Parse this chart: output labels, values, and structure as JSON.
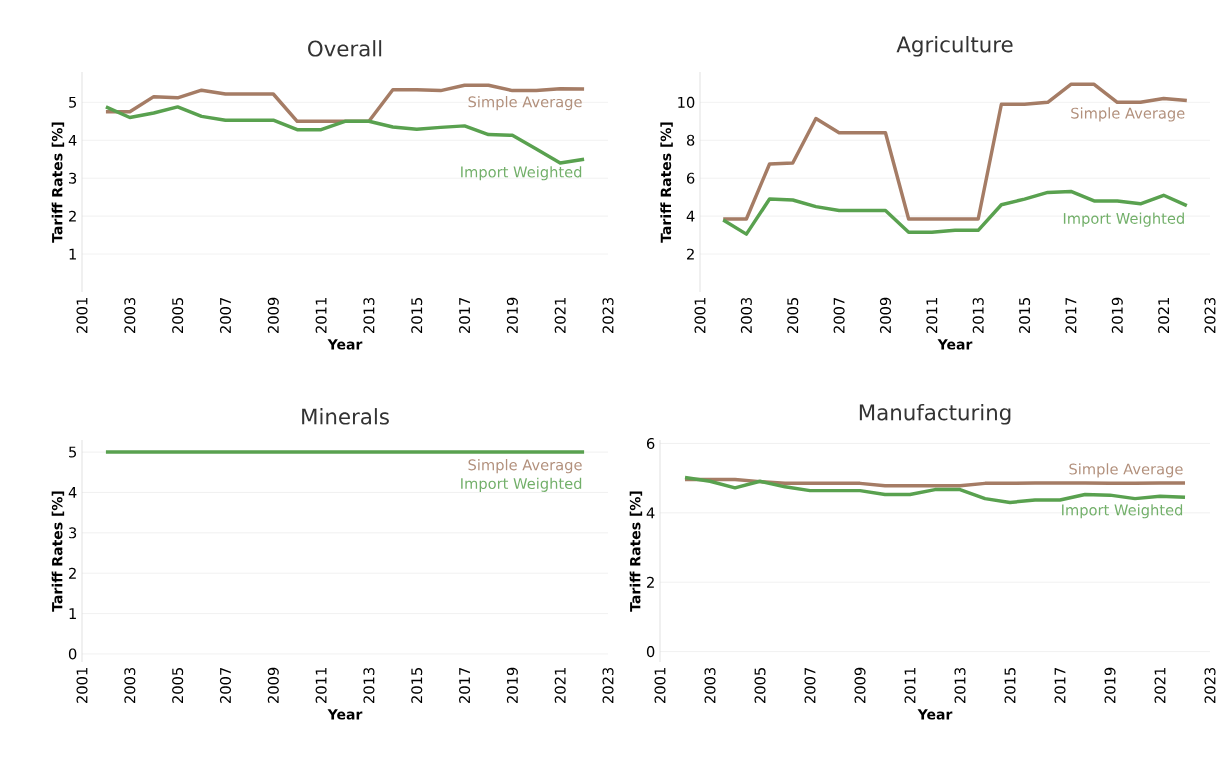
{
  "chart_data": [
    {
      "type": "line",
      "title": "Overall",
      "xlabel": "Year",
      "ylabel": "Tariff Rates [%]",
      "grid": "y",
      "x": [
        2002,
        2003,
        2004,
        2005,
        2006,
        2007,
        2008,
        2009,
        2010,
        2011,
        2012,
        2013,
        2014,
        2015,
        2016,
        2017,
        2018,
        2019,
        2020,
        2021,
        2022
      ],
      "xlim": [
        2001,
        2023
      ],
      "xticks": [
        2001,
        2003,
        2005,
        2007,
        2009,
        2011,
        2013,
        2015,
        2017,
        2019,
        2021,
        2023
      ],
      "ylim": [
        0,
        5.8
      ],
      "yticks": [
        1,
        2,
        3,
        4,
        5
      ],
      "series": [
        {
          "name": "Simple Average",
          "color": "#a57c65",
          "values": [
            4.75,
            4.75,
            5.15,
            5.12,
            5.32,
            5.22,
            5.22,
            5.22,
            4.5,
            4.5,
            4.5,
            4.5,
            5.33,
            5.33,
            5.31,
            5.45,
            5.45,
            5.31,
            5.31,
            5.36,
            5.35
          ]
        },
        {
          "name": "Import Weighted",
          "color": "#59a14f",
          "values": [
            4.88,
            4.6,
            4.72,
            4.88,
            4.63,
            4.53,
            4.53,
            4.53,
            4.28,
            4.28,
            4.5,
            4.5,
            4.35,
            4.29,
            4.34,
            4.38,
            4.15,
            4.13,
            3.77,
            3.4,
            3.5
          ]
        }
      ]
    },
    {
      "type": "line",
      "title": "Agriculture",
      "xlabel": "Year",
      "ylabel": "Tariff Rates [%]",
      "grid": "y",
      "x": [
        2002,
        2003,
        2004,
        2005,
        2006,
        2007,
        2008,
        2009,
        2010,
        2011,
        2012,
        2013,
        2014,
        2015,
        2016,
        2017,
        2018,
        2019,
        2020,
        2021,
        2022
      ],
      "xlim": [
        2001,
        2023
      ],
      "xticks": [
        2001,
        2003,
        2005,
        2007,
        2009,
        2011,
        2013,
        2015,
        2017,
        2019,
        2021,
        2023
      ],
      "ylim": [
        0,
        11.6
      ],
      "yticks": [
        2,
        4,
        6,
        8,
        10
      ],
      "series": [
        {
          "name": "Simple Average",
          "color": "#a57c65",
          "values": [
            3.85,
            3.85,
            6.75,
            6.8,
            9.15,
            8.4,
            8.4,
            8.4,
            3.85,
            3.85,
            3.85,
            3.85,
            9.9,
            9.9,
            10.0,
            10.95,
            10.95,
            10.0,
            10.0,
            10.2,
            10.1
          ]
        },
        {
          "name": "Import Weighted",
          "color": "#59a14f",
          "values": [
            3.8,
            3.05,
            4.9,
            4.85,
            4.5,
            4.3,
            4.3,
            4.3,
            3.15,
            3.15,
            3.25,
            3.25,
            4.6,
            4.9,
            5.25,
            5.3,
            4.8,
            4.8,
            4.65,
            5.1,
            4.55
          ]
        }
      ]
    },
    {
      "type": "line",
      "title": "Minerals",
      "xlabel": "Year",
      "ylabel": "Tariff Rates [%]",
      "grid": "y",
      "x": [
        2002,
        2003,
        2004,
        2005,
        2006,
        2007,
        2008,
        2009,
        2010,
        2011,
        2012,
        2013,
        2014,
        2015,
        2016,
        2017,
        2018,
        2019,
        2020,
        2021,
        2022
      ],
      "xlim": [
        2001,
        2023
      ],
      "xticks": [
        2001,
        2003,
        2005,
        2007,
        2009,
        2011,
        2013,
        2015,
        2017,
        2019,
        2021,
        2023
      ],
      "ylim": [
        -0.2,
        5.3
      ],
      "yticks": [
        0,
        1,
        2,
        3,
        4,
        5
      ],
      "series": [
        {
          "name": "Simple Average",
          "color": "#a57c65",
          "values": [
            null,
            null,
            null,
            null,
            null,
            null,
            null,
            null,
            null,
            null,
            null,
            null,
            null,
            null,
            null,
            null,
            null,
            null,
            null,
            null,
            null
          ]
        },
        {
          "name": "Import Weighted",
          "color": "#59a14f",
          "values": [
            5,
            5,
            5,
            5,
            5,
            5,
            5,
            5,
            5,
            5,
            5,
            5,
            5,
            5,
            5,
            5,
            5,
            5,
            5,
            5,
            5
          ]
        }
      ]
    },
    {
      "type": "line",
      "title": "Manufacturing",
      "xlabel": "Year",
      "ylabel": "Tariff Rates [%]",
      "grid": "y",
      "x": [
        2002,
        2003,
        2004,
        2005,
        2006,
        2007,
        2008,
        2009,
        2010,
        2011,
        2012,
        2013,
        2014,
        2015,
        2016,
        2017,
        2018,
        2019,
        2020,
        2021,
        2022
      ],
      "xlim": [
        2001,
        2023
      ],
      "xticks": [
        2001,
        2003,
        2005,
        2007,
        2009,
        2011,
        2013,
        2015,
        2017,
        2019,
        2021,
        2023
      ],
      "ylim": [
        -0.3,
        6.1
      ],
      "yticks": [
        0,
        2,
        4,
        6
      ],
      "series": [
        {
          "name": "Simple Average",
          "color": "#a57c65",
          "values": [
            4.96,
            4.96,
            4.96,
            4.9,
            4.85,
            4.85,
            4.85,
            4.85,
            4.78,
            4.78,
            4.78,
            4.78,
            4.85,
            4.85,
            4.86,
            4.86,
            4.86,
            4.85,
            4.85,
            4.86,
            4.86
          ]
        },
        {
          "name": "Import Weighted",
          "color": "#59a14f",
          "values": [
            5.02,
            4.91,
            4.72,
            4.91,
            4.75,
            4.64,
            4.64,
            4.64,
            4.53,
            4.53,
            4.67,
            4.67,
            4.41,
            4.3,
            4.37,
            4.37,
            4.53,
            4.51,
            4.41,
            4.48,
            4.45
          ]
        }
      ]
    }
  ]
}
